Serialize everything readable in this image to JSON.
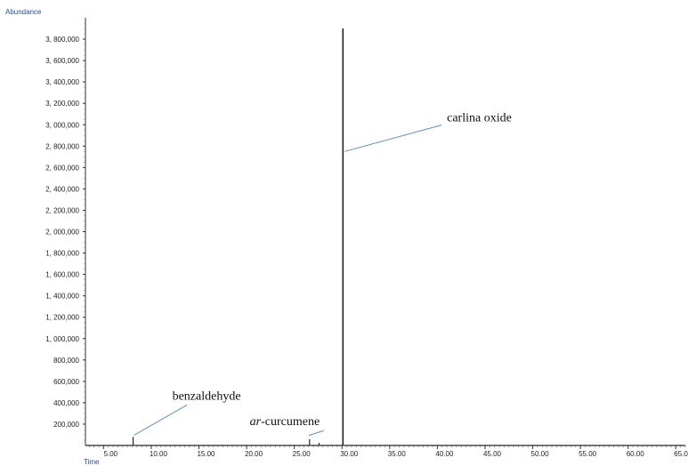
{
  "chart_data": {
    "type": "line",
    "ylabel": "Abundance",
    "xlabel": "Time",
    "xlim": [
      3.1,
      66.0
    ],
    "ylim": [
      0,
      4000000
    ],
    "x_ticks": [
      "5.00",
      "10.00",
      "15.00",
      "20.00",
      "25.00",
      "30.00",
      "35.00",
      "40.00",
      "45.00",
      "50.00",
      "55.00",
      "60.00",
      "65.00"
    ],
    "x_tick_values": [
      5,
      10,
      15,
      20,
      25,
      30,
      35,
      40,
      45,
      50,
      55,
      60,
      65
    ],
    "y_ticks": [
      "200,000",
      "400,000",
      "600,000",
      "800,000",
      "1, 000,000",
      "1, 200,000",
      "1, 400,000",
      "1, 600,000",
      "1, 800,000",
      "2, 000,000",
      "2, 200,000",
      "2, 400,000",
      "2, 600,000",
      "2, 800,000",
      "3, 000,000",
      "3, 200,000",
      "3, 400,000",
      "3, 600,000",
      "3, 800,000"
    ],
    "y_tick_values": [
      200000,
      400000,
      600000,
      800000,
      1000000,
      1200000,
      1400000,
      1600000,
      1800000,
      2000000,
      2200000,
      2400000,
      2600000,
      2800000,
      3000000,
      3200000,
      3400000,
      3600000,
      3800000
    ],
    "peaks": [
      {
        "x": 8.1,
        "y": 80000
      },
      {
        "x": 26.6,
        "y": 60000
      },
      {
        "x": 27.6,
        "y": 25000
      },
      {
        "x": 30.1,
        "y": 3900000
      }
    ],
    "annotations": [
      {
        "text": "benzaldehyde",
        "prefix": "",
        "peak_x": 8.1,
        "peak_y": 80000,
        "text_x": 15.8,
        "text_y": 430000
      },
      {
        "text": "-curcumene",
        "prefix": "ar",
        "peak_x": 26.6,
        "peak_y": 60000,
        "text_x": 24.0,
        "text_y": 190000
      },
      {
        "text": "carlina oxide",
        "prefix": "",
        "peak_x": 30.1,
        "peak_y": 2750000,
        "text_x": 41.0,
        "text_y": 3030000
      }
    ]
  }
}
